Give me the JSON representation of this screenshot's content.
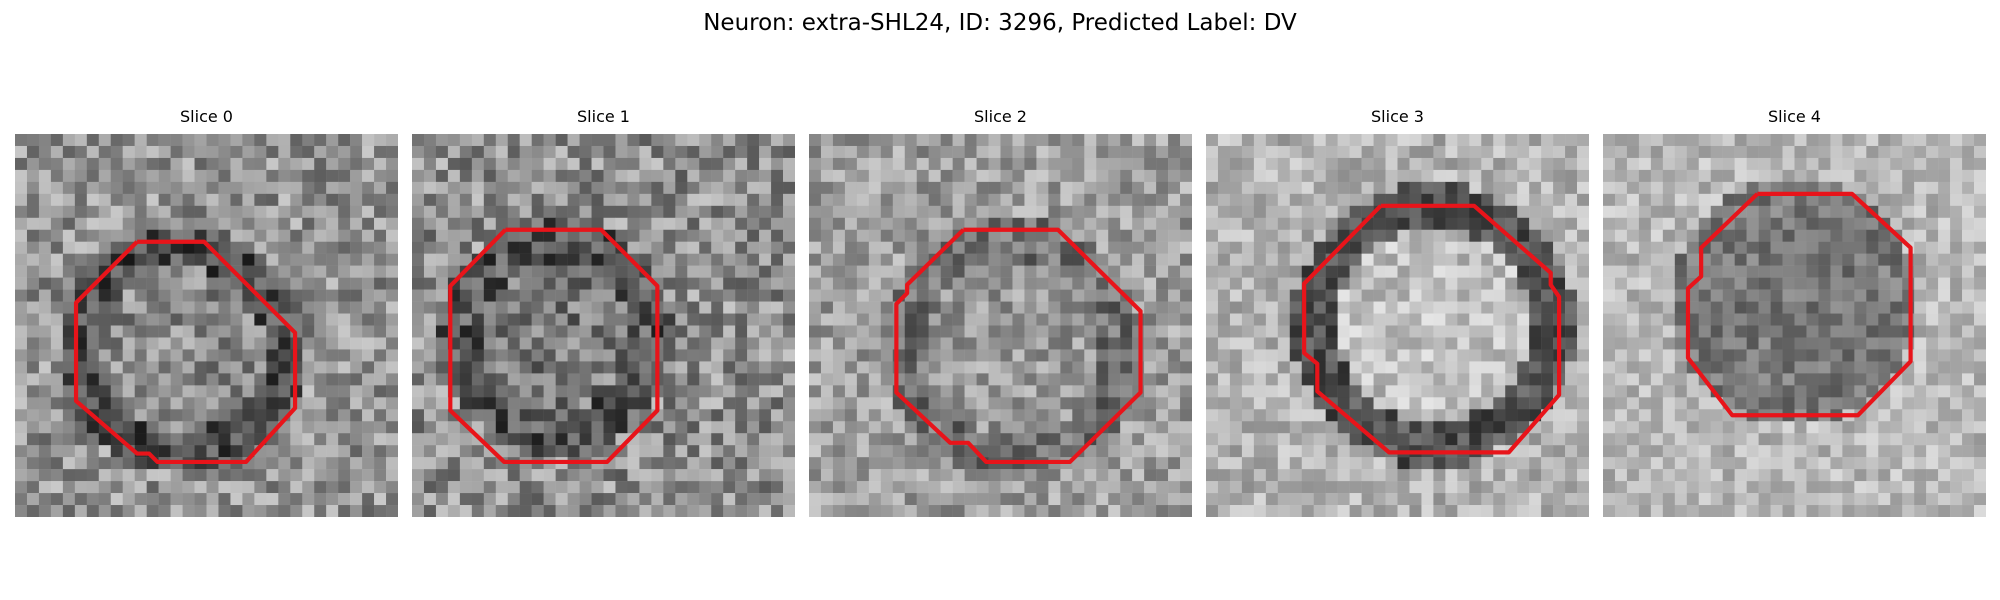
{
  "figure": {
    "title": "Neuron: extra-SHL24, ID: 3296, Predicted Label: DV"
  },
  "panels": [
    {
      "title": "Slice 0"
    },
    {
      "title": "Slice 1"
    },
    {
      "title": "Slice 2"
    },
    {
      "title": "Slice 3"
    },
    {
      "title": "Slice 4"
    }
  ],
  "colors": {
    "contour": "#e8141a",
    "background": "#ffffff"
  }
}
